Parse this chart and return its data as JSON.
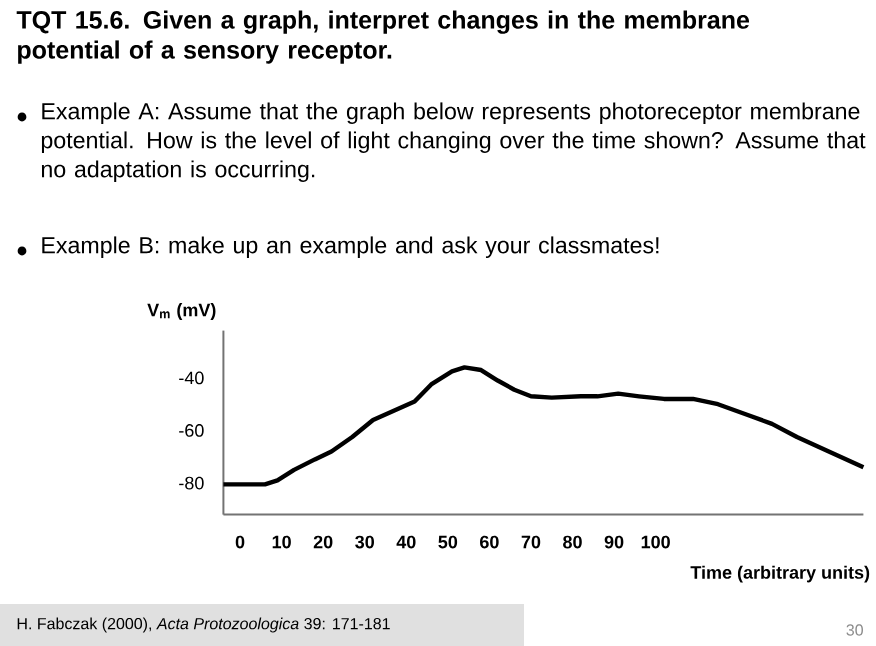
{
  "chart_data": {
    "type": "line",
    "title": "TQT 15.6. Given a graph, interpret changes in the membrane potential of a sensory receptor.",
    "annotations": [
      "Example A: Assume that the graph below represents photoreceptor membrane potential. How is the level of light changing over the time shown?  Assume that no adaptation is occurring.",
      "Example B: make up an example and ask your classmates!",
      "H. Fabczak (2000), *Acta Protozoologica* 39: 171-181",
      "30"
    ],
    "ylabel": "V$_{m}$ (mV)",
    "xlabel": "Time (arbitrary units)",
    "color": "#000000",
    "x": [
      -4,
      2,
      6,
      9,
      13,
      18,
      22,
      27,
      32,
      37,
      42,
      46,
      51,
      54,
      58,
      62,
      66,
      70,
      75,
      82,
      86,
      91,
      96,
      102,
      109,
      115,
      122,
      128,
      134,
      141,
      150
    ],
    "values": [
      -80.5,
      -80.5,
      -80.5,
      -79,
      -75,
      -71,
      -68,
      -62.5,
      -56,
      -52.5,
      -49,
      -42.5,
      -37.5,
      -36,
      -37,
      -41,
      -44.5,
      -47,
      -47.5,
      -47,
      -47,
      -46,
      -47,
      -48,
      -48,
      -50,
      -54,
      -57.5,
      -62.5,
      -67.5,
      -74
    ],
    "xlim": [
      -4,
      150
    ],
    "ylim": [
      -92,
      -22
    ],
    "xticks": [
      0,
      10,
      20,
      30,
      40,
      50,
      60,
      70,
      80,
      90,
      100
    ],
    "yticks": [
      -40,
      -60,
      -80
    ]
  }
}
